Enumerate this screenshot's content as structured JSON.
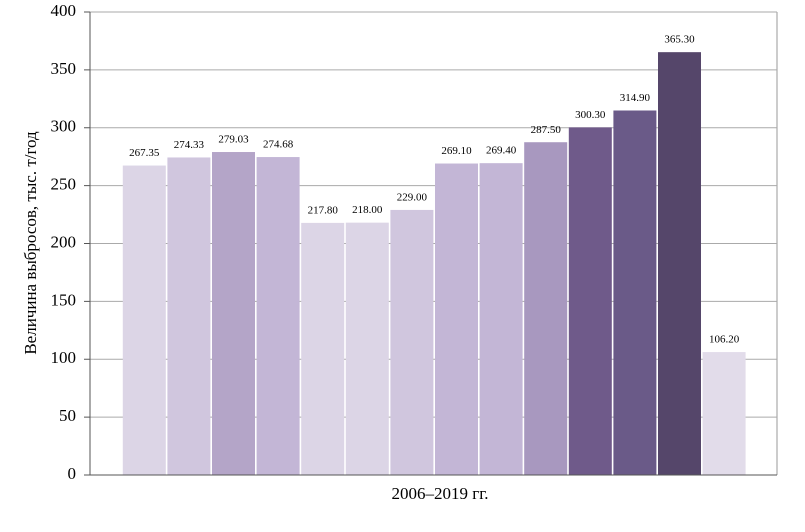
{
  "chart_data": {
    "type": "bar",
    "y_label": "Величина выбросов, тыс. т/год",
    "x_label": "2006–2019 гг.",
    "categories": [
      null,
      null,
      null,
      null,
      null,
      null,
      null,
      null,
      null,
      null,
      null,
      null,
      null,
      null
    ],
    "values": [
      267.35,
      274.33,
      279.03,
      274.68,
      217.8,
      218,
      229,
      269.1,
      269.4,
      287.5,
      300.3,
      314.9,
      365.3,
      106.2
    ],
    "value_labels": [
      "267.35",
      "274.33",
      "279.03",
      "274.68",
      "217.80",
      "218.00",
      "229.00",
      "269.10",
      "269.40",
      "287.50",
      "300.30",
      "314.90",
      "365.30",
      "106.20"
    ],
    "colors": [
      "#dcd5e6",
      "#d0c6de",
      "#b4a5c8",
      "#c3b6d6",
      "#dcd5e6",
      "#dcd5e6",
      "#d0c6de",
      "#c3b6d6",
      "#c3b6d6",
      "#a898bf",
      "#6f5a8a",
      "#6a5a88",
      "#55466a",
      "#e2dcea"
    ],
    "ylim": [
      0,
      400
    ],
    "yticks": [
      0,
      50,
      100,
      150,
      200,
      250,
      300,
      350,
      400
    ],
    "grid": true
  }
}
